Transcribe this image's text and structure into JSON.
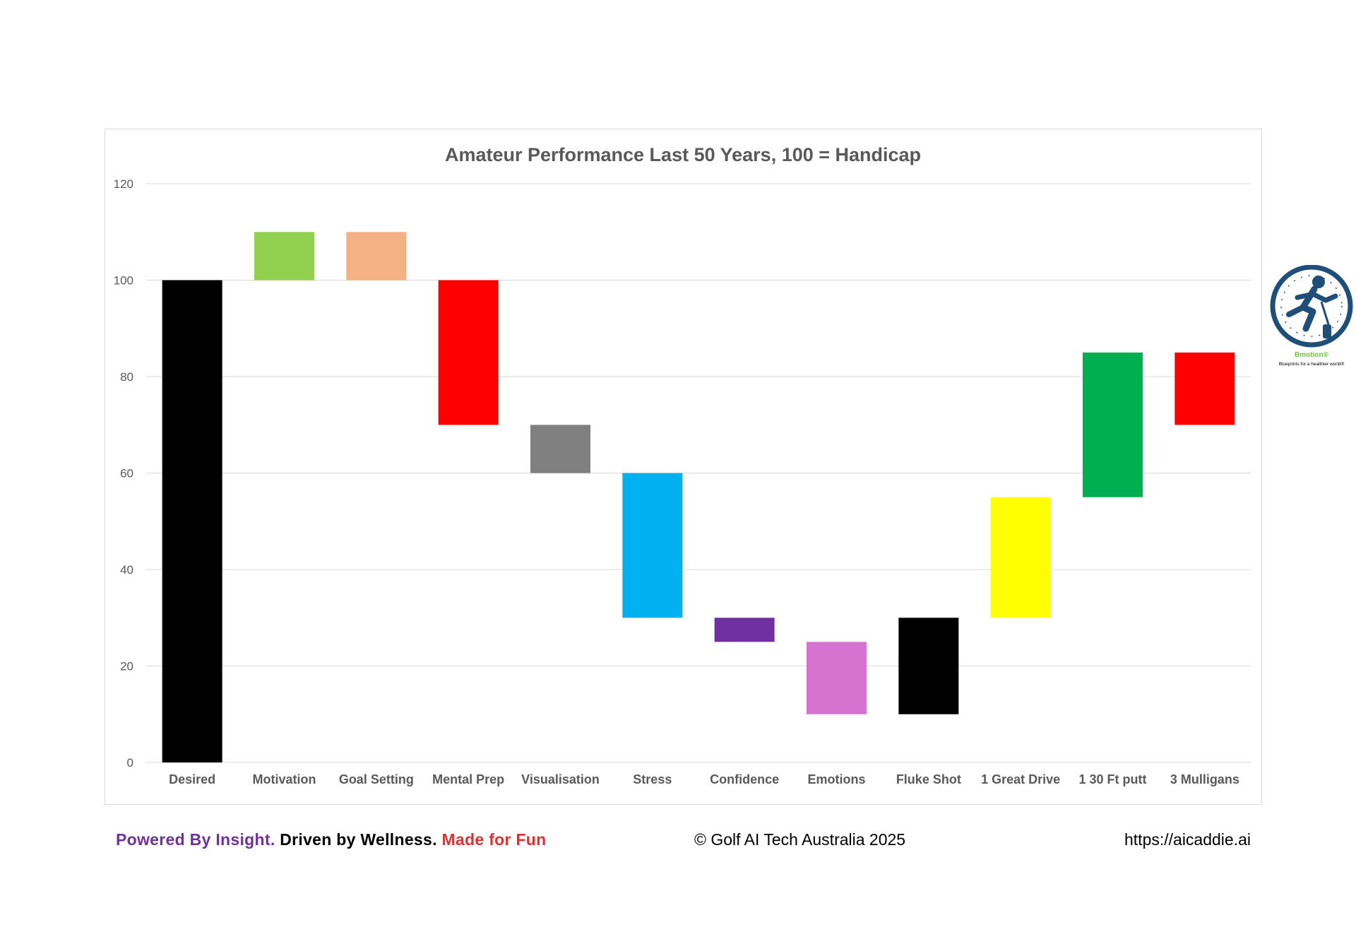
{
  "chart_data": {
    "type": "waterfall",
    "title": "Amateur Performance Last 50 Years, 100 = Handicap",
    "categories": [
      "Desired",
      "Motivation",
      "Goal Setting",
      "Mental Prep",
      "Visualisation",
      "Stress",
      "Confidence",
      "Emotions",
      "Fluke Shot",
      "1 Great Drive",
      "1 30 Ft putt",
      "3 Mulligans"
    ],
    "bars": [
      {
        "label": "Desired",
        "start": 0,
        "end": 100,
        "color": "#000000"
      },
      {
        "label": "Motivation",
        "start": 100,
        "end": 110,
        "color": "#92d050"
      },
      {
        "label": "Goal Setting",
        "start": 100,
        "end": 110,
        "color": "#f4b183"
      },
      {
        "label": "Mental Prep",
        "start": 70,
        "end": 100,
        "color": "#ff0000"
      },
      {
        "label": "Visualisation",
        "start": 60,
        "end": 70,
        "color": "#808080"
      },
      {
        "label": "Stress",
        "start": 30,
        "end": 60,
        "color": "#00b0f0"
      },
      {
        "label": "Confidence",
        "start": 25,
        "end": 30,
        "color": "#7030a0"
      },
      {
        "label": "Emotions",
        "start": 10,
        "end": 25,
        "color": "#d672cf"
      },
      {
        "label": "Fluke Shot",
        "start": 10,
        "end": 30,
        "color": "#000000"
      },
      {
        "label": "1 Great Drive",
        "start": 30,
        "end": 55,
        "color": "#ffff00"
      },
      {
        "label": "1 30 Ft putt",
        "start": 55,
        "end": 85,
        "color": "#00b050"
      },
      {
        "label": "3 Mulligans",
        "start": 70,
        "end": 85,
        "color": "#ff0000"
      }
    ],
    "ylim": [
      0,
      120
    ],
    "yticks": [
      0,
      20,
      40,
      60,
      80,
      100,
      120
    ],
    "grid": true,
    "legend": "none"
  },
  "logo": {
    "brand": "Bmotion®",
    "tagline": "Blueprints for a healthier world®",
    "brand_color": "#7ac143",
    "ring_color": "#1f4e79"
  },
  "footer": {
    "tagline_1": "Powered By Insight.",
    "tagline_2": "Driven by Wellness.",
    "tagline_3": "Made for Fun",
    "copyright": "© Golf AI Tech Australia 2025",
    "url": "https://aicaddie.ai"
  }
}
